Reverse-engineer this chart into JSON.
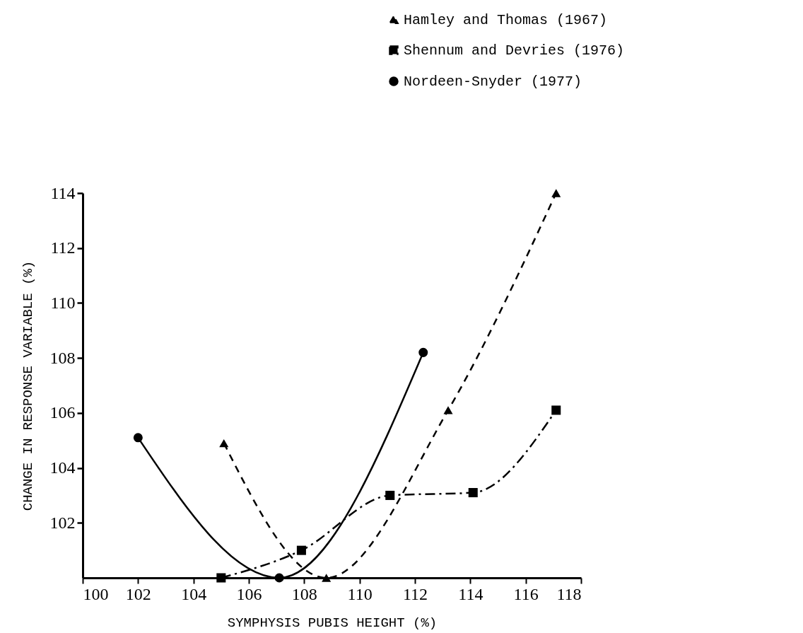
{
  "chart_data": {
    "type": "line",
    "xlabel": "SYMPHYSIS PUBIS HEIGHT (%)",
    "ylabel": "CHANGE IN RESPONSE VARIABLE (%)",
    "xlim": [
      100,
      118
    ],
    "xticks": [
      100,
      102,
      104,
      106,
      108,
      110,
      112,
      114,
      116,
      118
    ],
    "ylim": [
      100,
      114
    ],
    "yticks": [
      102,
      104,
      106,
      108,
      110,
      112,
      114
    ],
    "grid": false,
    "legend": "top right",
    "series": [
      {
        "name": "Hamley and Thomas (1967)",
        "color": "#000000",
        "marker": "triangle",
        "line_style": "dashed",
        "x": [
          105.1,
          108.8,
          113.2,
          117.1
        ],
        "values": [
          104.9,
          100,
          106.1,
          114
        ]
      },
      {
        "name": "Shennum and Devries (1976)",
        "color": "#000000",
        "marker": "square",
        "line_style": "dashdot",
        "x": [
          105,
          107.9,
          111.1,
          114.1,
          117.1
        ],
        "values": [
          100,
          101,
          103,
          103.1,
          106.1
        ]
      },
      {
        "name": "Nordeen-Snyder (1977)",
        "color": "#000000",
        "marker": "circle",
        "line_style": "solid",
        "x": [
          102,
          107.1,
          112.3
        ],
        "values": [
          105.1,
          100,
          108.2
        ]
      }
    ]
  }
}
